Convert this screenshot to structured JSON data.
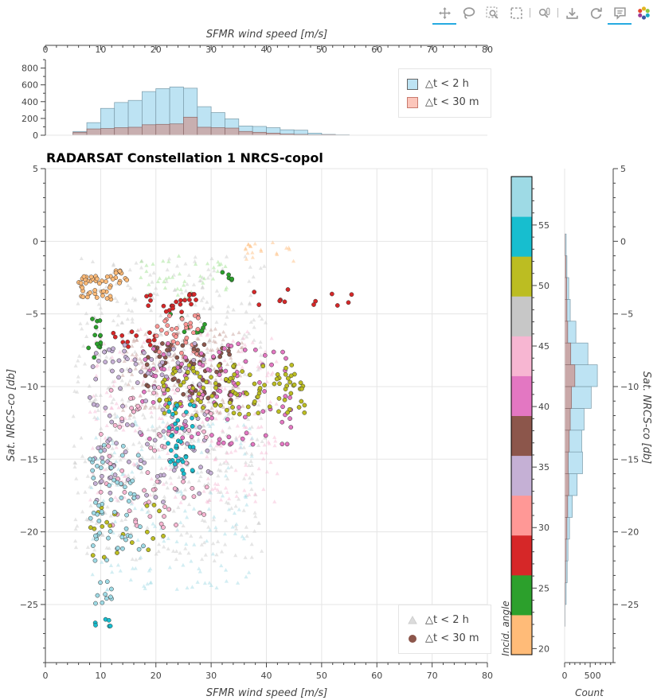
{
  "toolbar": {
    "tools": [
      {
        "name": "pan-tool",
        "icon": "pan-icon",
        "active": true
      },
      {
        "name": "lasso-select-tool",
        "icon": "lasso-icon",
        "active": false
      },
      {
        "name": "box-zoom-tool",
        "icon": "box-zoom-icon",
        "active": false
      },
      {
        "name": "box-select-tool",
        "icon": "box-select-icon",
        "active": false
      },
      {
        "name": "wheel-zoom-tool",
        "icon": "wheel-zoom-icon",
        "active": false
      },
      {
        "name": "save-tool",
        "icon": "save-icon",
        "active": false
      },
      {
        "name": "reset-tool",
        "icon": "reset-icon",
        "active": false
      },
      {
        "name": "hover-tool",
        "icon": "hover-icon",
        "active": true
      },
      {
        "name": "bokeh-logo",
        "icon": "bokeh-logo-icon",
        "active": false
      }
    ]
  },
  "chart_data": [
    {
      "id": "top-histogram",
      "type": "bar",
      "xlabel": "SFMR wind speed [m/s]",
      "xlim": [
        0,
        80
      ],
      "ylim": [
        0,
        900
      ],
      "x_ticks": [
        "0",
        "10",
        "20",
        "30",
        "40",
        "50",
        "60",
        "70",
        "80"
      ],
      "y_ticks": [
        "0",
        "200",
        "400",
        "600",
        "800"
      ],
      "bin_edges": [
        5,
        7.5,
        10,
        12.5,
        15,
        17.5,
        20,
        22.5,
        25,
        27.5,
        30,
        32.5,
        35,
        37.5,
        40,
        42.5,
        45,
        47.5,
        50,
        52.5,
        55
      ],
      "series": [
        {
          "name": "△t < 2 h",
          "color": "#bde3f3",
          "values": [
            45,
            150,
            320,
            390,
            415,
            520,
            555,
            575,
            560,
            340,
            270,
            195,
            110,
            105,
            90,
            65,
            60,
            25,
            10,
            5
          ]
        },
        {
          "name": "△t < 30 m",
          "color": "#c9a8a8",
          "values": [
            35,
            75,
            80,
            90,
            95,
            125,
            130,
            135,
            215,
            95,
            90,
            85,
            45,
            35,
            25,
            15,
            10,
            5,
            5,
            2
          ]
        }
      ],
      "legend_position": "top-right"
    },
    {
      "id": "main-scatter",
      "type": "scatter",
      "title": "RADARSAT Constellation 1 NRCS-copol",
      "xlabel": "SFMR wind speed [m/s]",
      "ylabel": "Sat. NRCS-co [db]",
      "xlim": [
        0,
        80
      ],
      "ylim": [
        -29,
        5
      ],
      "x_ticks": [
        "0",
        "10",
        "20",
        "30",
        "40",
        "50",
        "60",
        "70",
        "80"
      ],
      "y_ticks": [
        "5",
        "0",
        "−5",
        "−10",
        "−15",
        "−20",
        "−25"
      ],
      "grid": true,
      "legend_position": "bottom-right",
      "series_names": [
        "△t < 2 h",
        "△t < 30 m"
      ],
      "clusters": [
        {
          "series": "△t < 30 m",
          "color": "#ffbb78",
          "x": [
            6,
            12
          ],
          "y": [
            -4,
            -2.4
          ],
          "n": 40
        },
        {
          "series": "△t < 30 m",
          "color": "#ffbb78",
          "x": [
            12,
            15
          ],
          "y": [
            -3.0,
            -2.0
          ],
          "n": 12
        },
        {
          "series": "△t < 30 m",
          "color": "#2ca02c",
          "x": [
            7,
            10
          ],
          "y": [
            -8,
            -5
          ],
          "n": 14
        },
        {
          "series": "△t < 30 m",
          "color": "#2ca02c",
          "x": [
            32,
            34
          ],
          "y": [
            -3,
            -2
          ],
          "n": 5
        },
        {
          "series": "△t < 30 m",
          "color": "#2ca02c",
          "x": [
            22,
            29
          ],
          "y": [
            -6.5,
            -4.5
          ],
          "n": 10
        },
        {
          "series": "△t < 30 m",
          "color": "#d62728",
          "x": [
            36,
            56
          ],
          "y": [
            -4.5,
            -3.0
          ],
          "n": 12
        },
        {
          "series": "△t < 30 m",
          "color": "#d62728",
          "x": [
            18,
            28
          ],
          "y": [
            -5,
            -3.5
          ],
          "n": 22
        },
        {
          "series": "△t < 30 m",
          "color": "#d62728",
          "x": [
            12,
            20
          ],
          "y": [
            -7.5,
            -6.2
          ],
          "n": 14
        },
        {
          "series": "△t < 30 m",
          "color": "#ff9896",
          "x": [
            20,
            28
          ],
          "y": [
            -8,
            -5
          ],
          "n": 40
        },
        {
          "series": "△t < 30 m",
          "color": "#8c564b",
          "x": [
            18,
            34
          ],
          "y": [
            -11,
            -7
          ],
          "n": 70
        },
        {
          "series": "△t < 30 m",
          "color": "#e377c2",
          "x": [
            17,
            45
          ],
          "y": [
            -14,
            -7
          ],
          "n": 120
        },
        {
          "series": "△t < 30 m",
          "color": "#c5b0d5",
          "x": [
            8,
            30
          ],
          "y": [
            -18,
            -7
          ],
          "n": 120
        },
        {
          "series": "△t < 30 m",
          "color": "#f7b6d2",
          "x": [
            10,
            30
          ],
          "y": [
            -20,
            -10
          ],
          "n": 80
        },
        {
          "series": "△t < 30 m",
          "color": "#bcbd22",
          "x": [
            20,
            47
          ],
          "y": [
            -12,
            -8.5
          ],
          "n": 110
        },
        {
          "series": "△t < 30 m",
          "color": "#bcbd22",
          "x": [
            8,
            22
          ],
          "y": [
            -22,
            -18
          ],
          "n": 20
        },
        {
          "series": "△t < 30 m",
          "color": "#17becf",
          "x": [
            22,
            27
          ],
          "y": [
            -16,
            -11
          ],
          "n": 40
        },
        {
          "series": "△t < 30 m",
          "color": "#9edae5",
          "x": [
            8,
            18
          ],
          "y": [
            -22,
            -14
          ],
          "n": 60
        },
        {
          "series": "△t < 30 m",
          "color": "#9edae5",
          "x": [
            9,
            12
          ],
          "y": [
            -25,
            -23
          ],
          "n": 10
        },
        {
          "series": "△t < 30 m",
          "color": "#17becf",
          "x": [
            9,
            12
          ],
          "y": [
            -26.5,
            -26
          ],
          "n": 6
        },
        {
          "series": "△t < 2 h",
          "color": "#c7c7c7",
          "x": [
            5,
            40
          ],
          "y": [
            -22,
            -1
          ],
          "n": 500
        },
        {
          "series": "△t < 2 h",
          "color": "#f7b6d2",
          "x": [
            8,
            42
          ],
          "y": [
            -18,
            -6
          ],
          "n": 260
        },
        {
          "series": "△t < 2 h",
          "color": "#9edae5",
          "x": [
            8,
            38
          ],
          "y": [
            -24,
            -12
          ],
          "n": 160
        },
        {
          "series": "△t < 2 h",
          "color": "#98df8a",
          "x": [
            17,
            33
          ],
          "y": [
            -4,
            -1
          ],
          "n": 40
        },
        {
          "series": "△t < 2 h",
          "color": "#ffbb78",
          "x": [
            36,
            45
          ],
          "y": [
            -1.5,
            0
          ],
          "n": 20
        },
        {
          "series": "△t < 2 h",
          "color": "#c49c94",
          "x": [
            14,
            36
          ],
          "y": [
            -12,
            -6
          ],
          "n": 180
        }
      ]
    },
    {
      "id": "colorbar",
      "type": "heatmap",
      "label": "Incid. angle",
      "range": [
        19.5,
        59
      ],
      "ticks": [
        "20",
        "25",
        "30",
        "35",
        "40",
        "45",
        "50",
        "55"
      ],
      "colors": [
        "#ffbb78",
        "#2ca02c",
        "#d62728",
        "#ff9896",
        "#c5b0d5",
        "#8c564b",
        "#e377c2",
        "#f7b6d2",
        "#c7c7c7",
        "#bcbd22",
        "#17becf",
        "#9edae5"
      ]
    },
    {
      "id": "right-histogram",
      "type": "bar",
      "xlabel": "Count",
      "ylabel": "Sat. NRCS-co [db]",
      "x_ticks": [
        "0",
        "500"
      ],
      "y_ticks": [
        "5",
        "0",
        "−5",
        "−10",
        "−15",
        "−20",
        "−25"
      ],
      "xlim": [
        0,
        950
      ],
      "ylim": [
        -29,
        5
      ],
      "bin_edges": [
        -26.5,
        -25,
        -23.5,
        -22,
        -20.5,
        -19,
        -17.5,
        -16,
        -14.5,
        -13,
        -11.5,
        -10,
        -8.5,
        -7,
        -5.5,
        -4,
        -2.5,
        -1,
        0.5
      ],
      "series": [
        {
          "name": "△t < 2 h",
          "color": "#bde3f3",
          "values": [
            10,
            30,
            50,
            65,
            95,
            150,
            245,
            350,
            335,
            380,
            520,
            640,
            455,
            220,
            110,
            80,
            45,
            30
          ]
        },
        {
          "name": "△t < 30 m",
          "color": "#c9a8a8",
          "values": [
            5,
            10,
            20,
            30,
            45,
            60,
            80,
            70,
            90,
            110,
            135,
            200,
            120,
            60,
            45,
            40,
            25,
            10
          ]
        }
      ]
    }
  ]
}
